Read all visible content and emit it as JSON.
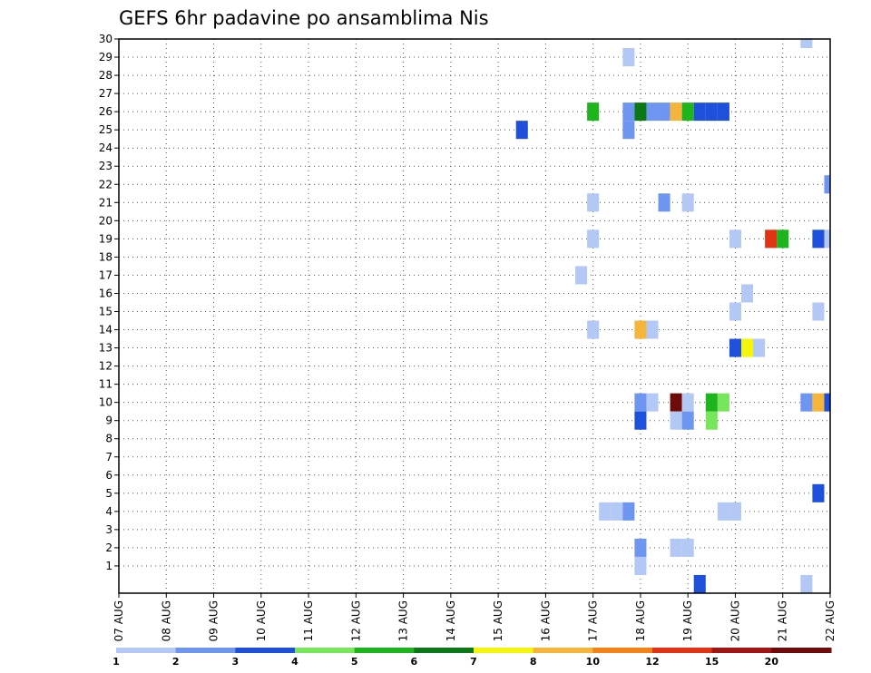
{
  "chart_data": {
    "type": "heatmap",
    "title": "GEFS 6hr padavine po ansamblima Nis",
    "x_tick_labels": [
      "07 AUG",
      "08 AUG",
      "09 AUG",
      "10 AUG",
      "11 AUG",
      "12 AUG",
      "13 AUG",
      "14 AUG",
      "15 AUG",
      "16 AUG",
      "17 AUG",
      "18 AUG",
      "19 AUG",
      "20 AUG",
      "21 AUG",
      "22 AUG"
    ],
    "xlim_steps": [
      0,
      60
    ],
    "ylim": [
      0,
      30
    ],
    "y_tick_labels": [
      "1",
      "2",
      "3",
      "4",
      "5",
      "6",
      "7",
      "8",
      "9",
      "10",
      "11",
      "12",
      "13",
      "14",
      "15",
      "16",
      "17",
      "18",
      "19",
      "20",
      "21",
      "22",
      "23",
      "24",
      "25",
      "26",
      "27",
      "28",
      "29",
      "30"
    ],
    "grid": true,
    "legend": {
      "placement": "bottom",
      "colors": [
        "#b4c8f5",
        "#6e96f0",
        "#1e50dc",
        "#78e65a",
        "#1eb41e",
        "#0a7814",
        "#f5f50a",
        "#f5b43c",
        "#f58214",
        "#e13214",
        "#a01414",
        "#6e0a0a"
      ],
      "labels": [
        "1",
        "2",
        "3",
        "4",
        "5",
        "6",
        "7",
        "8",
        "10",
        "12",
        "15",
        "20"
      ]
    },
    "cells": [
      {
        "t": 58,
        "m": 30,
        "c": 0
      },
      {
        "t": 43,
        "m": 29,
        "c": 0
      },
      {
        "t": 40,
        "m": 26,
        "c": 4
      },
      {
        "t": 43,
        "m": 26,
        "c": 1
      },
      {
        "t": 44,
        "m": 26,
        "c": 5
      },
      {
        "t": 45,
        "m": 26,
        "c": 1
      },
      {
        "t": 46,
        "m": 26,
        "c": 1
      },
      {
        "t": 47,
        "m": 26,
        "c": 7
      },
      {
        "t": 48,
        "m": 26,
        "c": 4
      },
      {
        "t": 49,
        "m": 26,
        "c": 2
      },
      {
        "t": 50,
        "m": 26,
        "c": 2
      },
      {
        "t": 51,
        "m": 26,
        "c": 2
      },
      {
        "t": 34,
        "m": 25,
        "c": 2
      },
      {
        "t": 43,
        "m": 25,
        "c": 1
      },
      {
        "t": 60,
        "m": 22,
        "c": 1
      },
      {
        "t": 40,
        "m": 21,
        "c": 0
      },
      {
        "t": 46,
        "m": 21,
        "c": 1
      },
      {
        "t": 48,
        "m": 21,
        "c": 0
      },
      {
        "t": 40,
        "m": 19,
        "c": 0
      },
      {
        "t": 52,
        "m": 19,
        "c": 0
      },
      {
        "t": 55,
        "m": 19,
        "c": 9
      },
      {
        "t": 56,
        "m": 19,
        "c": 4
      },
      {
        "t": 59,
        "m": 19,
        "c": 2
      },
      {
        "t": 60,
        "m": 19,
        "c": 0
      },
      {
        "t": 39,
        "m": 17,
        "c": 0
      },
      {
        "t": 53,
        "m": 16,
        "c": 0
      },
      {
        "t": 52,
        "m": 15,
        "c": 0
      },
      {
        "t": 59,
        "m": 15,
        "c": 0
      },
      {
        "t": 40,
        "m": 14,
        "c": 0
      },
      {
        "t": 44,
        "m": 14,
        "c": 7
      },
      {
        "t": 45,
        "m": 14,
        "c": 0
      },
      {
        "t": 52,
        "m": 13,
        "c": 2
      },
      {
        "t": 53,
        "m": 13,
        "c": 6
      },
      {
        "t": 54,
        "m": 13,
        "c": 0
      },
      {
        "t": 44,
        "m": 10,
        "c": 1
      },
      {
        "t": 45,
        "m": 10,
        "c": 0
      },
      {
        "t": 47,
        "m": 10,
        "c": 11
      },
      {
        "t": 48,
        "m": 10,
        "c": 0
      },
      {
        "t": 50,
        "m": 10,
        "c": 4
      },
      {
        "t": 51,
        "m": 10,
        "c": 3
      },
      {
        "t": 58,
        "m": 10,
        "c": 1
      },
      {
        "t": 59,
        "m": 10,
        "c": 7
      },
      {
        "t": 60,
        "m": 10,
        "c": 2
      },
      {
        "t": 44,
        "m": 9,
        "c": 2
      },
      {
        "t": 47,
        "m": 9,
        "c": 0
      },
      {
        "t": 48,
        "m": 9,
        "c": 1
      },
      {
        "t": 50,
        "m": 9,
        "c": 3
      },
      {
        "t": 59,
        "m": 5,
        "c": 2
      },
      {
        "t": 41,
        "m": 4,
        "c": 0
      },
      {
        "t": 42,
        "m": 4,
        "c": 0
      },
      {
        "t": 43,
        "m": 4,
        "c": 1
      },
      {
        "t": 51,
        "m": 4,
        "c": 0
      },
      {
        "t": 52,
        "m": 4,
        "c": 0
      },
      {
        "t": 44,
        "m": 2,
        "c": 1
      },
      {
        "t": 47,
        "m": 2,
        "c": 0
      },
      {
        "t": 48,
        "m": 2,
        "c": 0
      },
      {
        "t": 44,
        "m": 1,
        "c": 0
      },
      {
        "t": 49,
        "m": 0,
        "c": 2
      },
      {
        "t": 58,
        "m": 0,
        "c": 0
      }
    ]
  }
}
